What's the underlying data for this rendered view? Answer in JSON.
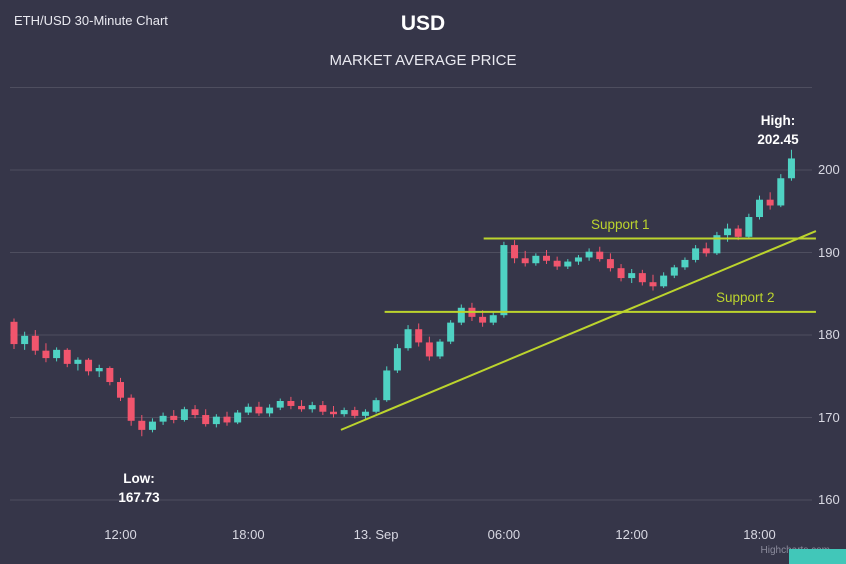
{
  "header": {
    "chart_label": "ETH/USD 30-Minute Chart",
    "title": "USD",
    "subtitle": "MARKET AVERAGE PRICE"
  },
  "credits": "Highcharts.com",
  "colors": {
    "background": "#363649",
    "up": "#4fd2c3",
    "down": "#f1556d",
    "trend": "#bcd42d",
    "grid": "rgba(255,255,255,0.12)",
    "text": "#d8d8e2",
    "corner_accent": "#41c7b9"
  },
  "annotations": {
    "high": {
      "label": "High:",
      "value": "202.45"
    },
    "low": {
      "label": "Low:",
      "value": "167.73"
    },
    "support1": {
      "label": "Support 1",
      "price": 191.7,
      "start_index": 44.1,
      "end_index": 75.3
    },
    "support2": {
      "label": "Support 2",
      "price": 182.8,
      "start_index": 34.8,
      "end_index": 75.3
    },
    "trendline": {
      "from": {
        "index": 30.7,
        "price": 168.5
      },
      "to": {
        "index": 75.3,
        "price": 192.6
      }
    }
  },
  "chart_data": {
    "type": "candlestick",
    "title": "USD",
    "subtitle": "MARKET AVERAGE PRICE",
    "xlabel": "",
    "ylabel": "",
    "yticks": [
      160,
      170,
      180,
      190,
      200
    ],
    "ylim": [
      157.5,
      209.7
    ],
    "grid": true,
    "legend": false,
    "high_point": 202.45,
    "low_point": 167.73,
    "xticks": [
      {
        "index": 10,
        "label": "12:00"
      },
      {
        "index": 22,
        "label": "18:00"
      },
      {
        "index": 34,
        "label": "13. Sep"
      },
      {
        "index": 46,
        "label": "06:00"
      },
      {
        "index": 58,
        "label": "12:00"
      },
      {
        "index": 70,
        "label": "18:00"
      }
    ],
    "columns": [
      "time",
      "open",
      "high",
      "low",
      "close"
    ],
    "candles": [
      [
        "12 Sep 07:00",
        181.6,
        182.0,
        178.3,
        178.9
      ],
      [
        "12 Sep 07:30",
        178.9,
        180.4,
        178.2,
        179.9
      ],
      [
        "12 Sep 08:00",
        179.9,
        180.6,
        177.6,
        178.1
      ],
      [
        "12 Sep 08:30",
        178.1,
        179.0,
        176.7,
        177.2
      ],
      [
        "12 Sep 09:00",
        177.2,
        178.5,
        176.8,
        178.2
      ],
      [
        "12 Sep 09:30",
        178.2,
        178.4,
        176.1,
        176.5
      ],
      [
        "12 Sep 10:00",
        176.5,
        177.3,
        175.7,
        177.0
      ],
      [
        "12 Sep 10:30",
        177.0,
        177.2,
        175.1,
        175.6
      ],
      [
        "12 Sep 11:00",
        175.6,
        176.4,
        174.9,
        176.0
      ],
      [
        "12 Sep 11:30",
        176.0,
        176.2,
        173.9,
        174.3
      ],
      [
        "12 Sep 12:00",
        174.3,
        174.8,
        172.0,
        172.4
      ],
      [
        "12 Sep 12:30",
        172.4,
        172.8,
        169.0,
        169.6
      ],
      [
        "12 Sep 13:00",
        169.6,
        170.3,
        167.73,
        168.5
      ],
      [
        "12 Sep 13:30",
        168.5,
        169.9,
        168.2,
        169.5
      ],
      [
        "12 Sep 14:00",
        169.5,
        170.6,
        169.1,
        170.2
      ],
      [
        "12 Sep 14:30",
        170.2,
        170.9,
        169.3,
        169.7
      ],
      [
        "12 Sep 15:00",
        169.7,
        171.3,
        169.5,
        171.0
      ],
      [
        "12 Sep 15:30",
        171.0,
        171.5,
        169.9,
        170.3
      ],
      [
        "12 Sep 16:00",
        170.3,
        171.0,
        168.9,
        169.2
      ],
      [
        "12 Sep 16:30",
        169.2,
        170.4,
        168.8,
        170.1
      ],
      [
        "12 Sep 17:00",
        170.1,
        170.7,
        169.0,
        169.4
      ],
      [
        "12 Sep 17:30",
        169.4,
        170.9,
        169.2,
        170.6
      ],
      [
        "12 Sep 18:00",
        170.6,
        171.7,
        170.3,
        171.3
      ],
      [
        "12 Sep 18:30",
        171.3,
        171.9,
        170.2,
        170.5
      ],
      [
        "12 Sep 19:00",
        170.5,
        171.6,
        170.1,
        171.2
      ],
      [
        "12 Sep 19:30",
        171.2,
        172.3,
        170.9,
        172.0
      ],
      [
        "12 Sep 20:00",
        172.0,
        172.5,
        171.0,
        171.4
      ],
      [
        "12 Sep 20:30",
        171.4,
        172.1,
        170.7,
        171.0
      ],
      [
        "12 Sep 21:00",
        171.0,
        171.9,
        170.6,
        171.5
      ],
      [
        "12 Sep 21:30",
        171.5,
        172.0,
        170.3,
        170.7
      ],
      [
        "12 Sep 22:00",
        170.7,
        171.4,
        170.0,
        170.4
      ],
      [
        "12 Sep 22:30",
        170.4,
        171.2,
        170.1,
        170.9
      ],
      [
        "12 Sep 23:00",
        170.9,
        171.3,
        169.9,
        170.2
      ],
      [
        "12 Sep 23:30",
        170.2,
        171.0,
        169.8,
        170.7
      ],
      [
        "13 Sep 00:00",
        170.7,
        172.4,
        170.5,
        172.1
      ],
      [
        "13 Sep 00:30",
        172.1,
        176.2,
        171.9,
        175.7
      ],
      [
        "13 Sep 01:00",
        175.7,
        178.9,
        175.4,
        178.4
      ],
      [
        "13 Sep 01:30",
        178.4,
        181.2,
        178.1,
        180.7
      ],
      [
        "13 Sep 02:00",
        180.7,
        181.4,
        178.6,
        179.1
      ],
      [
        "13 Sep 02:30",
        179.1,
        179.8,
        176.9,
        177.4
      ],
      [
        "13 Sep 03:00",
        177.4,
        179.5,
        177.1,
        179.2
      ],
      [
        "13 Sep 03:30",
        179.2,
        181.8,
        178.9,
        181.5
      ],
      [
        "13 Sep 04:00",
        181.5,
        183.7,
        181.2,
        183.3
      ],
      [
        "13 Sep 04:30",
        183.3,
        183.9,
        181.7,
        182.2
      ],
      [
        "13 Sep 05:00",
        182.2,
        183.0,
        181.0,
        181.5
      ],
      [
        "13 Sep 05:30",
        181.5,
        182.8,
        181.2,
        182.4
      ],
      [
        "13 Sep 06:00",
        182.4,
        191.3,
        182.1,
        190.9
      ],
      [
        "13 Sep 06:30",
        190.9,
        191.5,
        188.7,
        189.3
      ],
      [
        "13 Sep 07:00",
        189.3,
        190.2,
        188.3,
        188.7
      ],
      [
        "13 Sep 07:30",
        188.7,
        189.9,
        188.4,
        189.6
      ],
      [
        "13 Sep 08:00",
        189.6,
        190.3,
        188.6,
        189.0
      ],
      [
        "13 Sep 08:30",
        189.0,
        189.5,
        187.9,
        188.3
      ],
      [
        "13 Sep 09:00",
        188.3,
        189.2,
        188.0,
        188.9
      ],
      [
        "13 Sep 09:30",
        188.9,
        189.7,
        188.5,
        189.4
      ],
      [
        "13 Sep 10:00",
        189.4,
        190.5,
        189.0,
        190.1
      ],
      [
        "13 Sep 10:30",
        190.1,
        190.7,
        188.9,
        189.2
      ],
      [
        "13 Sep 11:00",
        189.2,
        189.9,
        187.7,
        188.1
      ],
      [
        "13 Sep 11:30",
        188.1,
        188.6,
        186.5,
        186.9
      ],
      [
        "13 Sep 12:00",
        186.9,
        188.0,
        186.3,
        187.5
      ],
      [
        "13 Sep 12:30",
        187.5,
        187.9,
        186.0,
        186.4
      ],
      [
        "13 Sep 13:00",
        186.4,
        187.3,
        185.4,
        185.9
      ],
      [
        "13 Sep 13:30",
        185.9,
        187.6,
        185.7,
        187.2
      ],
      [
        "13 Sep 14:00",
        187.2,
        188.5,
        186.9,
        188.2
      ],
      [
        "13 Sep 14:30",
        188.2,
        189.4,
        187.9,
        189.1
      ],
      [
        "13 Sep 15:00",
        189.1,
        190.9,
        188.8,
        190.5
      ],
      [
        "13 Sep 15:30",
        190.5,
        191.2,
        189.5,
        189.9
      ],
      [
        "13 Sep 16:00",
        189.9,
        192.5,
        189.7,
        192.1
      ],
      [
        "13 Sep 16:30",
        192.1,
        193.5,
        191.3,
        192.9
      ],
      [
        "13 Sep 17:00",
        192.9,
        193.3,
        191.5,
        191.9
      ],
      [
        "13 Sep 17:30",
        191.9,
        194.7,
        191.7,
        194.3
      ],
      [
        "13 Sep 18:00",
        194.3,
        196.9,
        194.0,
        196.4
      ],
      [
        "13 Sep 18:30",
        196.4,
        197.3,
        195.2,
        195.7
      ],
      [
        "13 Sep 19:00",
        195.7,
        199.5,
        195.5,
        199.0
      ],
      [
        "13 Sep 19:30",
        199.0,
        202.45,
        198.7,
        201.4
      ]
    ]
  }
}
